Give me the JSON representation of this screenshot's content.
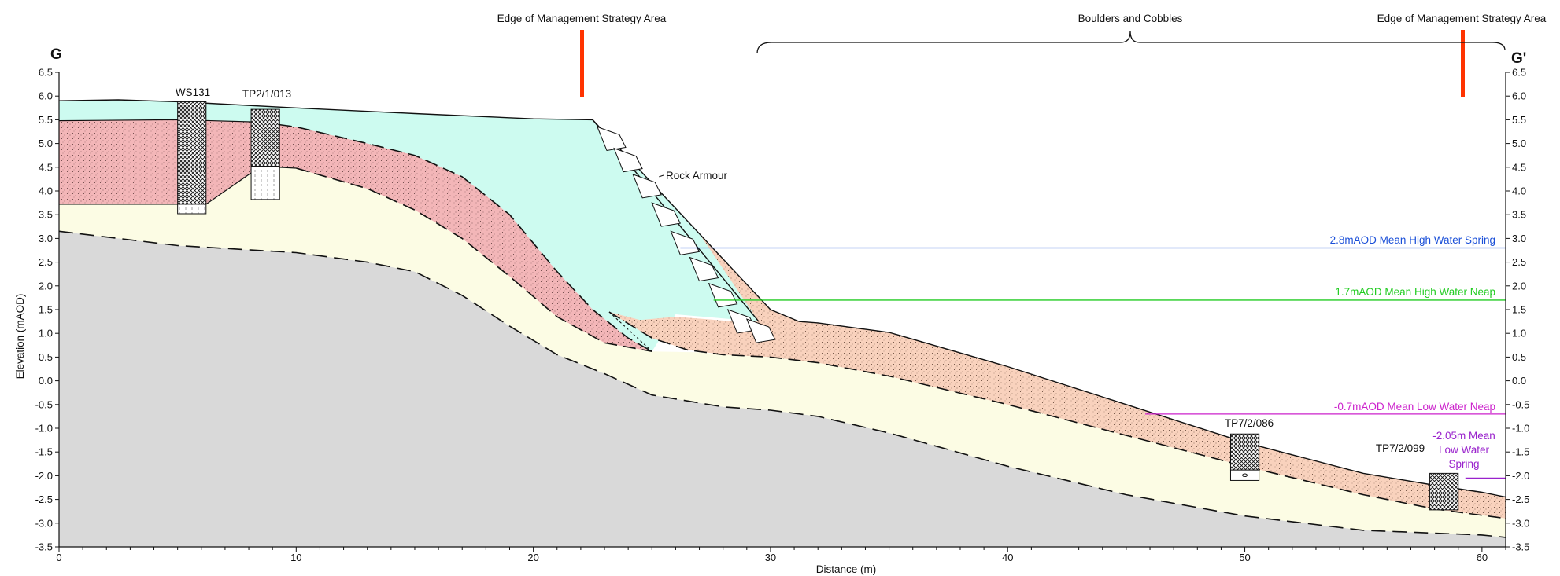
{
  "section": {
    "start_label": "G",
    "end_label": "G'",
    "x_axis_label": "Distance (m)",
    "y_axis_label": "Elevation (mAOD)",
    "x_range": [
      0,
      61
    ],
    "y_range": [
      -3.5,
      6.5
    ],
    "x_ticks": [
      0,
      10,
      20,
      30,
      40,
      50,
      60
    ],
    "y_ticks": [
      6.5,
      6.0,
      5.5,
      5.0,
      4.5,
      4.0,
      3.5,
      3.0,
      2.5,
      2.0,
      1.5,
      1.0,
      0.5,
      0.0,
      -0.5,
      -1.0,
      -1.5,
      -2.0,
      -2.5,
      -3.0,
      -3.5
    ],
    "y_tick_labels": [
      "6.5",
      "6.0",
      "5.5",
      "5.0",
      "4.5",
      "4.0",
      "3.5",
      "3.0",
      "2.5",
      "2.0",
      "1.5",
      "1.0",
      "0.5",
      "0.0",
      "-0.5",
      "-1.0",
      "-1.5",
      "-2.0",
      "-2.5",
      "-3.0",
      "-3.5"
    ],
    "x_tick_labels": [
      "0",
      "10",
      "20",
      "30",
      "40",
      "50",
      "60"
    ]
  },
  "annotations": {
    "edge_left": "Edge of Management Strategy Area",
    "edge_right": "Edge of Management Strategy Area",
    "boulders": "Boulders and Cobbles",
    "rock_armour": "Rock Armour"
  },
  "boreholes": {
    "ws131": "WS131",
    "tp2": "TP2/1/013",
    "tp7_086": "TP7/2/086",
    "tp7_099": "TP7/2/099"
  },
  "water_levels": {
    "mhws": {
      "label": "2.8mAOD Mean High Water Spring",
      "level": 2.8,
      "color": "#1a4fd8"
    },
    "mhwn": {
      "label": "1.7mAOD Mean High Water Neap",
      "level": 1.7,
      "color": "#22cc22"
    },
    "mlwn": {
      "label": "-0.7mAOD Mean Low Water Neap",
      "level": -0.7,
      "color": "#cc22cc"
    },
    "mlws": {
      "label_lines": [
        "-2.05m Mean",
        "Low Water",
        "Spring"
      ],
      "level": -2.05,
      "color": "#9922cc"
    }
  },
  "colors": {
    "made_ground": "#cdfbf0",
    "red_layer": "#f3b6b8",
    "cream_layer": "#fcfce4",
    "bedrock": "#d9d9d9",
    "beach_sand": "#f9d2bd",
    "edge_marker": "#ff3300"
  }
}
